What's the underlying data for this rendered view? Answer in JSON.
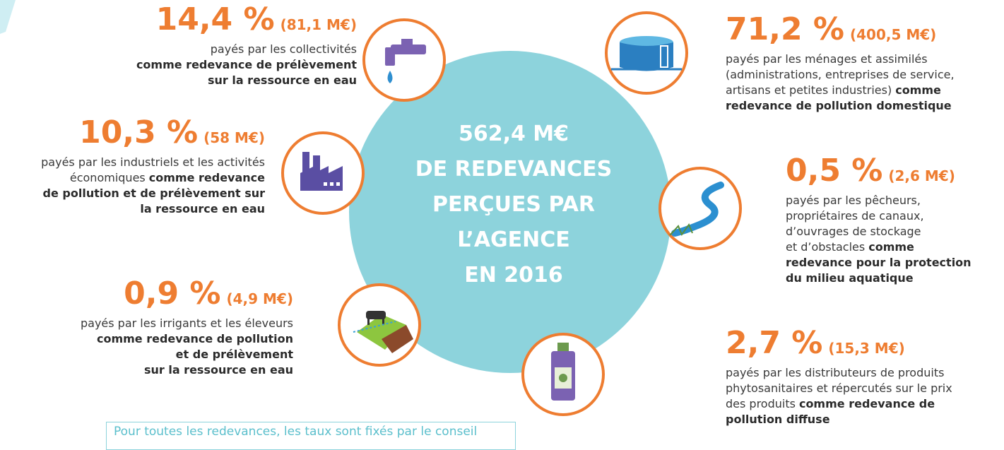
{
  "center": [
    "562,4 M€",
    "DE REDEVANCES",
    "PERÇUES PAR",
    "L’AGENCE",
    "EN 2016"
  ],
  "items": [
    {
      "percent": "14,4 %",
      "amount": "(81,1 M€)",
      "lines": [
        {
          "t": "payés par les collectivités"
        },
        {
          "b": "comme redevance de prélèvement"
        },
        {
          "b": "sur la ressource en eau"
        }
      ]
    },
    {
      "percent": "10,3 %",
      "amount": "(58 M€)",
      "lines": [
        {
          "t": "payés par les industriels et les activités"
        },
        {
          "t": "économiques",
          "b": "comme redevance"
        },
        {
          "b": "de pollution et de prélèvement sur"
        },
        {
          "b": "la ressource en eau"
        }
      ]
    },
    {
      "percent": "0,9 %",
      "amount": "(4,9 M€)",
      "lines": [
        {
          "t": "payés par les irrigants et les éleveurs"
        },
        {
          "b": "comme redevance de pollution"
        },
        {
          "b": "et de prélèvement"
        },
        {
          "b": "sur la ressource en eau"
        }
      ]
    },
    {
      "percent": "71,2 %",
      "amount": "(400,5 M€)",
      "lines": [
        {
          "t": "payés par les ménages et assimilés"
        },
        {
          "t": "(administrations, entreprises de service,"
        },
        {
          "t": "artisans et petites industries)",
          "b": "comme"
        },
        {
          "b": "redevance de pollution domestique"
        }
      ]
    },
    {
      "percent": "0,5 %",
      "amount": "(2,6 M€)",
      "lines": [
        {
          "t": "payés par les pêcheurs,"
        },
        {
          "t": "propriétaires de canaux,"
        },
        {
          "t": "d’ouvrages de stockage"
        },
        {
          "t": "et d’obstacles",
          "b": "comme"
        },
        {
          "b": "redevance pour la protection"
        },
        {
          "b": "du milieu aquatique"
        }
      ]
    },
    {
      "percent": "2,7 %",
      "amount": "(15,3 M€)",
      "lines": [
        {
          "t": "payés par les distributeurs de produits"
        },
        {
          "t": "phytosanitaires et répercutés sur le prix"
        },
        {
          "t": "des produits",
          "b": "comme redevance de"
        },
        {
          "b": "pollution diffuse"
        }
      ]
    }
  ],
  "note": "Pour toutes les redevances, les taux sont fixés par le conseil"
}
